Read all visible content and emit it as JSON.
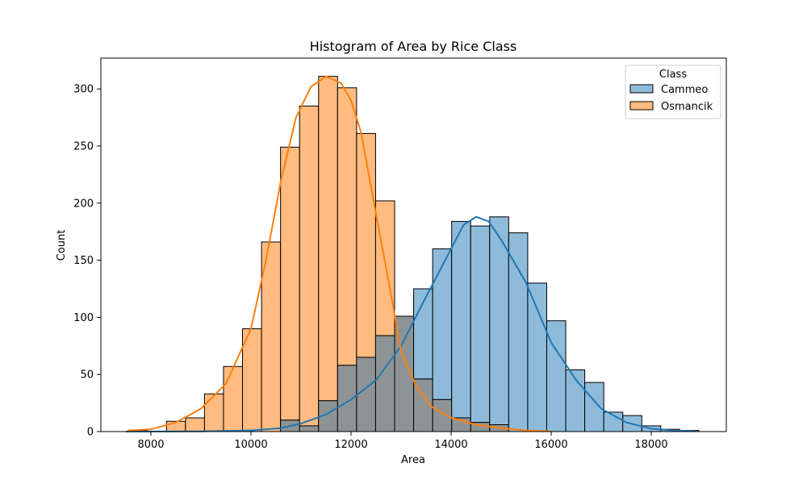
{
  "chart_data": {
    "type": "histogram",
    "title": "Histogram of Area by Rice Class",
    "xlabel": "Area",
    "ylabel": "Count",
    "xlim": [
      7000,
      19500
    ],
    "ylim": [
      0,
      327
    ],
    "x_ticks": [
      8000,
      10000,
      12000,
      14000,
      16000,
      18000
    ],
    "y_ticks": [
      0,
      50,
      100,
      150,
      200,
      250,
      300
    ],
    "grid": false,
    "legend": {
      "title": "Class",
      "position": "top-right"
    },
    "bin_start": 7551,
    "bin_width": 380,
    "overlap_color": "#8e9496",
    "series": [
      {
        "name": "Cammeo",
        "color": "#1f77b4",
        "fill": "#8ebbda",
        "counts": [
          0,
          0,
          0,
          0,
          0,
          0,
          0,
          0,
          10,
          5,
          27,
          58,
          65,
          84,
          101,
          125,
          160,
          184,
          180,
          188,
          174,
          130,
          97,
          54,
          43,
          17,
          14,
          5,
          2,
          1
        ],
        "kde": [
          [
            7500,
            0
          ],
          [
            9000,
            0.2
          ],
          [
            10000,
            1
          ],
          [
            10600,
            3
          ],
          [
            11000,
            7
          ],
          [
            11500,
            15
          ],
          [
            12000,
            28
          ],
          [
            12500,
            45
          ],
          [
            13000,
            75
          ],
          [
            13500,
            118
          ],
          [
            14000,
            160
          ],
          [
            14250,
            181
          ],
          [
            14500,
            188
          ],
          [
            14750,
            184
          ],
          [
            15000,
            168
          ],
          [
            15500,
            130
          ],
          [
            16000,
            78
          ],
          [
            16500,
            45
          ],
          [
            17000,
            20
          ],
          [
            17500,
            8
          ],
          [
            18000,
            2.5
          ],
          [
            18500,
            0.8
          ],
          [
            18900,
            0.3
          ]
        ]
      },
      {
        "name": "Osmancik",
        "color": "#ff7f0e",
        "fill": "#ffbb80",
        "counts": [
          1,
          0,
          9,
          12,
          33,
          57,
          90,
          166,
          249,
          285,
          311,
          301,
          261,
          202,
          101,
          46,
          28,
          12,
          8,
          6,
          0,
          0,
          0,
          0,
          0,
          0,
          0,
          0,
          0,
          0
        ],
        "kde": [
          [
            7551,
            1
          ],
          [
            8000,
            2
          ],
          [
            8500,
            8
          ],
          [
            9000,
            20
          ],
          [
            9500,
            42
          ],
          [
            10000,
            90
          ],
          [
            10300,
            150
          ],
          [
            10600,
            220
          ],
          [
            10900,
            275
          ],
          [
            11200,
            302
          ],
          [
            11500,
            311
          ],
          [
            11800,
            305
          ],
          [
            12000,
            290
          ],
          [
            12200,
            262
          ],
          [
            12500,
            190
          ],
          [
            12800,
            120
          ],
          [
            13000,
            70
          ],
          [
            13300,
            40
          ],
          [
            13600,
            22
          ],
          [
            14000,
            12
          ],
          [
            14500,
            6
          ],
          [
            15000,
            3
          ],
          [
            15500,
            1
          ],
          [
            16000,
            0.2
          ]
        ]
      }
    ]
  }
}
